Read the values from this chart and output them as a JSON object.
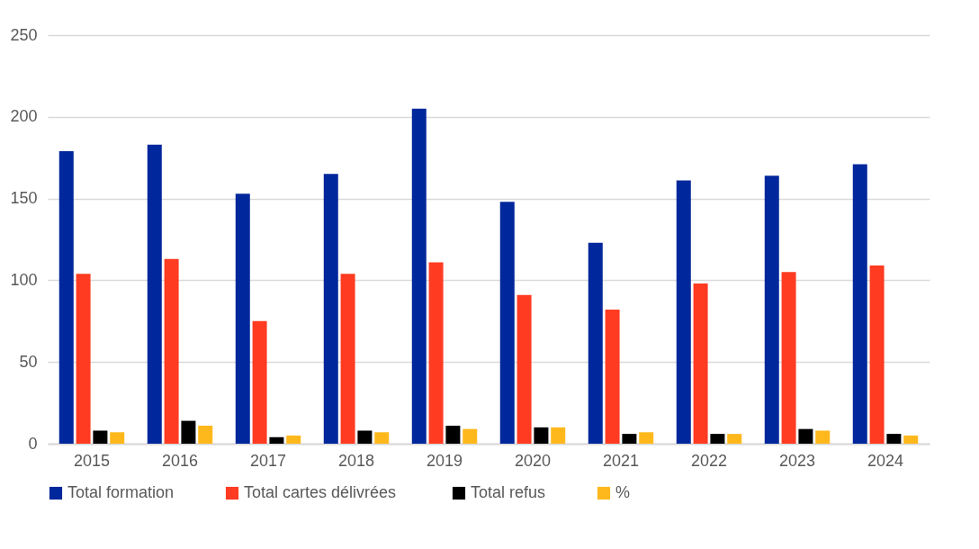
{
  "chart_data": {
    "type": "bar",
    "categories": [
      "2015",
      "2016",
      "2017",
      "2018",
      "2019",
      "2020",
      "2021",
      "2022",
      "2023",
      "2024"
    ],
    "series": [
      {
        "name": "Total formation",
        "color": "#00279b",
        "values": [
          179,
          183,
          153,
          165,
          205,
          148,
          123,
          161,
          164,
          171
        ]
      },
      {
        "name": "Total cartes  délivrées",
        "color": "#ff3b22",
        "values": [
          104,
          113,
          75,
          104,
          111,
          91,
          82,
          98,
          105,
          109
        ]
      },
      {
        "name": "Total refus",
        "color": "#000000",
        "values": [
          8,
          14,
          4,
          8,
          11,
          10,
          6,
          6,
          9,
          6
        ]
      },
      {
        "name": "%",
        "color": "#ffb81c",
        "values": [
          7,
          11,
          5,
          7,
          9,
          10,
          7,
          6,
          8,
          5
        ]
      }
    ],
    "ylim": [
      0,
      250
    ],
    "yticks": [
      0,
      50,
      100,
      150,
      200,
      250
    ],
    "grid": "y",
    "legend": "bottom"
  }
}
